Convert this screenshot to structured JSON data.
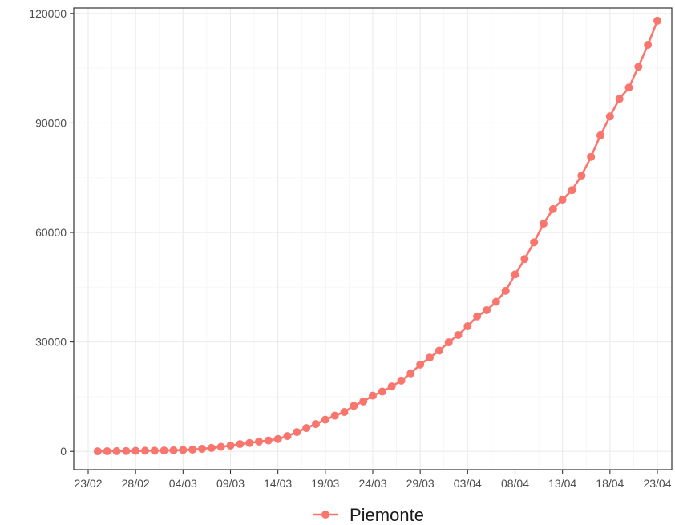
{
  "chart_data": {
    "type": "line",
    "title": "",
    "xlabel": "",
    "ylabel": "",
    "x_start": "23/02",
    "x_end": "23/04",
    "x_ticks": [
      "23/02",
      "28/02",
      "04/03",
      "09/03",
      "14/03",
      "19/03",
      "24/03",
      "29/03",
      "03/04",
      "08/04",
      "13/04",
      "18/04",
      "23/04"
    ],
    "y_ticks": [
      0,
      30000,
      60000,
      90000,
      120000
    ],
    "ylim": [
      -5000,
      121500
    ],
    "grid": true,
    "legend_position": "bottom",
    "series": [
      {
        "name": "Piemonte",
        "color": "#f8766d",
        "x": [
          "24/02",
          "25/02",
          "26/02",
          "27/02",
          "28/02",
          "29/02",
          "01/03",
          "02/03",
          "03/03",
          "04/03",
          "05/03",
          "06/03",
          "07/03",
          "08/03",
          "09/03",
          "10/03",
          "11/03",
          "12/03",
          "13/03",
          "14/03",
          "15/03",
          "16/03",
          "17/03",
          "18/03",
          "19/03",
          "20/03",
          "21/03",
          "22/03",
          "23/03",
          "24/03",
          "25/03",
          "26/03",
          "27/03",
          "28/03",
          "29/03",
          "30/03",
          "31/03",
          "01/04",
          "02/04",
          "03/04",
          "04/04",
          "05/04",
          "06/04",
          "07/04",
          "08/04",
          "09/04",
          "10/04",
          "11/04",
          "12/04",
          "13/04",
          "14/04",
          "15/04",
          "16/04",
          "17/04",
          "18/04",
          "19/04",
          "20/04",
          "21/04",
          "22/04",
          "23/04"
        ],
        "values": [
          30,
          50,
          70,
          100,
          150,
          180,
          200,
          250,
          300,
          400,
          500,
          700,
          950,
          1250,
          1600,
          2000,
          2300,
          2700,
          3000,
          3400,
          4200,
          5300,
          6400,
          7500,
          8700,
          9800,
          10800,
          12500,
          13700,
          15300,
          16400,
          17800,
          19400,
          21400,
          23800,
          25700,
          27600,
          29900,
          31900,
          34300,
          37000,
          38700,
          41000,
          44000,
          48500,
          52700,
          57300,
          62400,
          66400,
          69000,
          71600,
          75600,
          80700,
          86600,
          91800,
          96600,
          99700,
          105400,
          111400,
          118000
        ]
      }
    ],
    "legend": [
      "Piemonte"
    ]
  }
}
